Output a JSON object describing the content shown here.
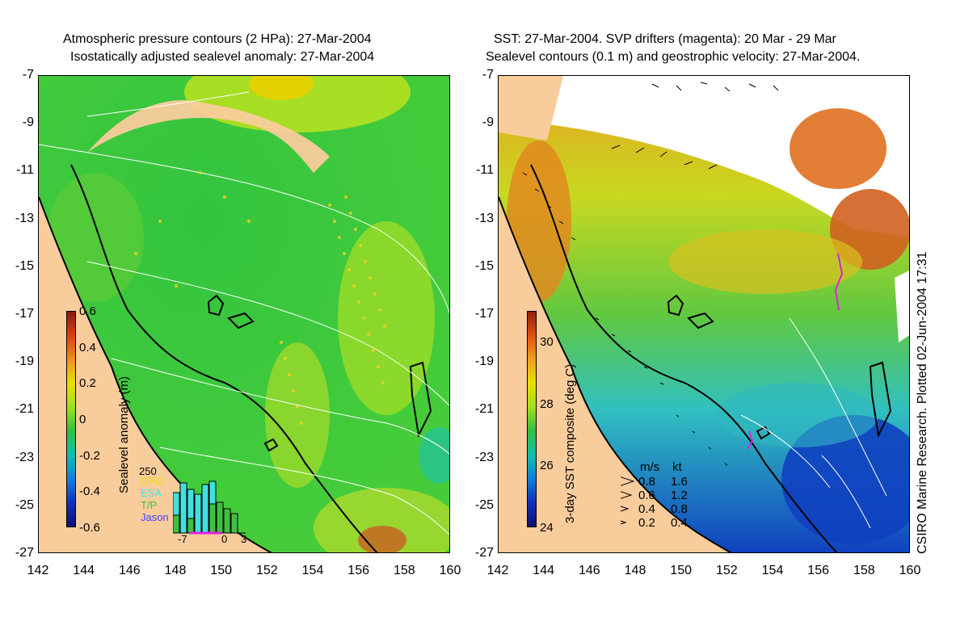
{
  "left_panel": {
    "title_line1": "Atmospheric pressure contours (2 HPa): 27-Mar-2004",
    "title_line2": "Isostatically adjusted sealevel anomaly: 27-Mar-2004",
    "colorbar": {
      "label": "Sealevel anomaly (m)",
      "ticks": [
        "0.6",
        "0.4",
        "0.2",
        "0",
        "-0.2",
        "-0.4",
        "-0.6"
      ],
      "range": [
        -0.6,
        0.6
      ]
    },
    "inset": {
      "y_max_label": "250",
      "legend": [
        {
          "label": "GFO",
          "color": "#e8e000"
        },
        {
          "label": "ESA",
          "color": "#40e0e0"
        },
        {
          "label": "T/P",
          "color": "#40c040"
        },
        {
          "label": "Jason",
          "color": "#4040ff"
        }
      ],
      "x_ticks": [
        "-7",
        "0",
        "3"
      ]
    }
  },
  "right_panel": {
    "title_line1": "SST: 27-Mar-2004. SVP drifters (magenta): 20 Mar - 29 Mar",
    "title_line2": "Sealevel contours (0.1 m) and geostrophic velocity: 27-Mar-2004.",
    "colorbar": {
      "label": "3-day SST composite (deg C)",
      "ticks": [
        "30",
        "28",
        "26",
        "24"
      ],
      "range": [
        24,
        31
      ]
    },
    "velocity_legend": {
      "header_ms": "m/s",
      "header_kt": "kt",
      "rows": [
        {
          "ms": "0.8",
          "kt": "1.6"
        },
        {
          "ms": "0.6",
          "kt": "1.2"
        },
        {
          "ms": "0.4",
          "kt": "0.8"
        },
        {
          "ms": "0.2",
          "kt": "0.4"
        }
      ]
    }
  },
  "axes": {
    "y_ticks": [
      "-7",
      "-9",
      "-11",
      "-13",
      "-15",
      "-17",
      "-19",
      "-21",
      "-23",
      "-25",
      "-27"
    ],
    "x_ticks": [
      "142",
      "144",
      "146",
      "148",
      "150",
      "152",
      "154",
      "156",
      "158",
      "160"
    ]
  },
  "credit": "CSIRO Marine Research. Plotted 02-Jun-2004 17:31",
  "colors": {
    "land": "#f9cc9c",
    "ocean_green": "#3cc83c",
    "ocean_light": "#8cdc28",
    "sst_warm": "#e08a20",
    "sst_cool": "#1a6fd8"
  }
}
